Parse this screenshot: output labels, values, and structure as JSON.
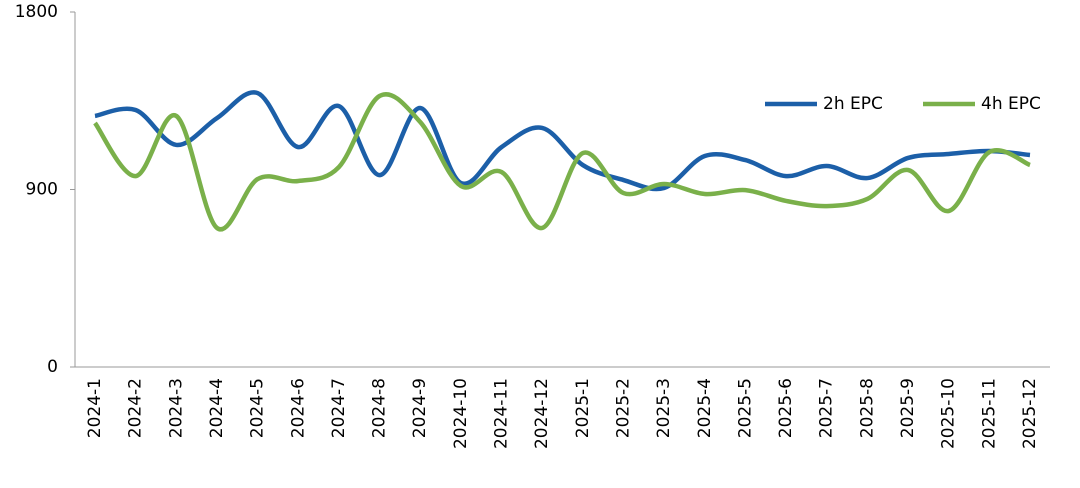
{
  "chart_data": {
    "type": "line",
    "categories": [
      "2024-1",
      "2024-2",
      "2024-3",
      "2024-4",
      "2024-5",
      "2024-6",
      "2024-7",
      "2024-8",
      "2024-9",
      "2024-10",
      "2024-11",
      "2024-12",
      "2025-1",
      "2025-2",
      "2025-3",
      "2025-4",
      "2025-5",
      "2025-6",
      "2025-7",
      "2025-8",
      "2025-9",
      "2025-10",
      "2025-11",
      "2025-12"
    ],
    "series": [
      {
        "name": "2h EPC",
        "color": "#1c5fa8",
        "values": [
          1273,
          1303,
          1126,
          1262,
          1389,
          1115,
          1323,
          973,
          1313,
          933,
          1115,
          1212,
          1024,
          948,
          908,
          1070,
          1049,
          968,
          1019,
          958,
          1060,
          1080,
          1095,
          1075
        ]
      },
      {
        "name": "4h EPC",
        "color": "#7ab04a",
        "values": [
          1237,
          968,
          1273,
          705,
          953,
          943,
          1014,
          1374,
          1242,
          918,
          989,
          705,
          1085,
          882,
          928,
          877,
          897,
          842,
          816,
          852,
          999,
          791,
          1090,
          1024
        ]
      }
    ],
    "ylim": [
      0,
      1800
    ],
    "yticks": [
      0,
      900,
      1800
    ],
    "legend": "upper-right",
    "smooth": true
  }
}
